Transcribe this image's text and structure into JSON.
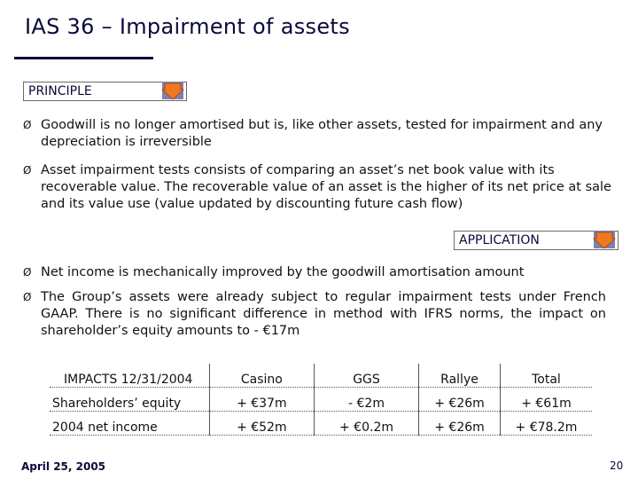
{
  "title": "IAS 36 – Impairment of assets",
  "principle": {
    "label": "PRINCIPLE",
    "bullets": [
      "Goodwill is no longer amortised but is, like other assets, tested for impairment and any depreciation is irreversible",
      "Asset impairment tests consists of comparing an asset’s net book value with its recoverable value. The recoverable value of an asset is the higher of its net price at sale and its value use (value updated by discounting future cash flow)"
    ]
  },
  "application": {
    "label": "APPLICATION",
    "bullets": [
      "Net income is mechanically improved by the goodwill amortisation amount",
      "The Group’s assets were already subject to regular impairment tests under French GAAP. There is no significant difference in method with IFRS norms, the impact on shareholder’s equity amounts to - €17m"
    ]
  },
  "bullet_glyph": "Ø",
  "table": {
    "header": [
      "IMPACTS 12/31/2004",
      "Casino",
      "GGS",
      "Rallye",
      "Total"
    ],
    "rows": [
      [
        "Shareholders’ equity",
        "+ €37m",
        "- €2m",
        "+ €26m",
        "+ €61m"
      ],
      [
        "2004 net income",
        "+ €52m",
        "+ €0.2m",
        "+ €26m",
        "+ €78.2m"
      ]
    ]
  },
  "footer": {
    "date": "April 25, 2005",
    "page_number": "20"
  },
  "colors": {
    "title": "#0a0a3c",
    "arrow_fill": "#f07820",
    "arrow_back": "#8080b0"
  },
  "icons": {
    "section_arrow": "down-arrow-icon"
  }
}
